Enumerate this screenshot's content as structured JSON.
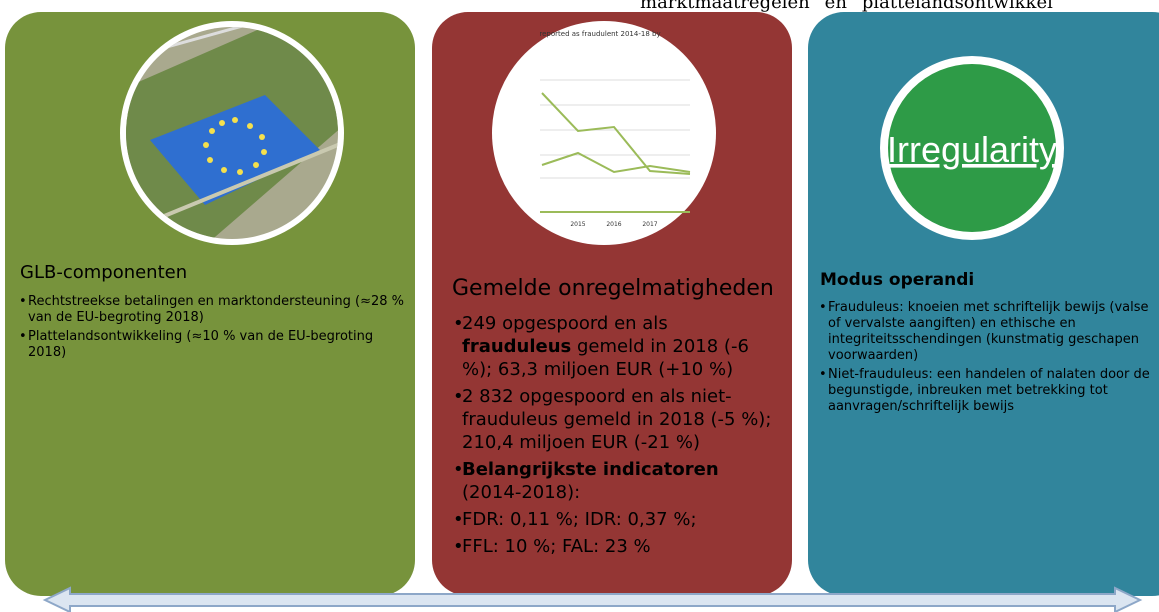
{
  "header_fragment": "marktmaatregelen” en “plattelandsontwikkel",
  "panels": [
    {
      "title": "GLB-componenten",
      "bullets": [
        [
          {
            "text": "Rechtstreekse betalingen en marktondersteuning (≈28 % van de EU-begroting 2018)",
            "bold": false
          }
        ],
        [
          {
            "text": "Plattelandsontwikkeling (≈10 % van de EU-begroting 2018)",
            "bold": false
          }
        ]
      ]
    },
    {
      "title": "Gemelde onregelmatigheden",
      "bullets": [
        [
          {
            "text": "249 opgespoord en als ",
            "bold": false
          },
          {
            "text": "frauduleus",
            "bold": true
          },
          {
            "text": " gemeld in 2018 (-6 %); 63,3 miljoen EUR (+10 %)",
            "bold": false
          }
        ],
        [
          {
            "text": "2 832 opgespoord en als niet-frauduleus gemeld in 2018 (-5 %); 210,4 miljoen EUR (-21 %)",
            "bold": false
          }
        ],
        [
          {
            "text": "Belangrijkste indicatoren",
            "bold": true
          },
          {
            "text": " (2014-2018):",
            "bold": false
          }
        ],
        [
          {
            "text": "FDR: 0,11 %; IDR: 0,37 %;",
            "bold": false
          }
        ],
        [
          {
            "text": "FFL: 10 %; FAL: 23 %",
            "bold": false
          }
        ]
      ]
    },
    {
      "title": "Modus operandi",
      "bullets": [
        [
          {
            "text": "Frauduleus: knoeien met schriftelijk bewijs (valse of vervalste aangiften) en ethische en integriteitsschendingen (kunstmatig geschapen voorwaarden)",
            "bold": false
          }
        ],
        [
          {
            "text": "Niet-frauduleus: een handelen of nalaten door de begunstigde, inbreuken met betrekking tot aanvragen/schriftelijk bewijs",
            "bold": false
          }
        ]
      ]
    }
  ],
  "chart_image": {
    "title": "reported as fraudulent 2014-18 by",
    "labels": [
      "2015",
      "2016",
      "2017"
    ]
  },
  "badge": "Irregularity"
}
